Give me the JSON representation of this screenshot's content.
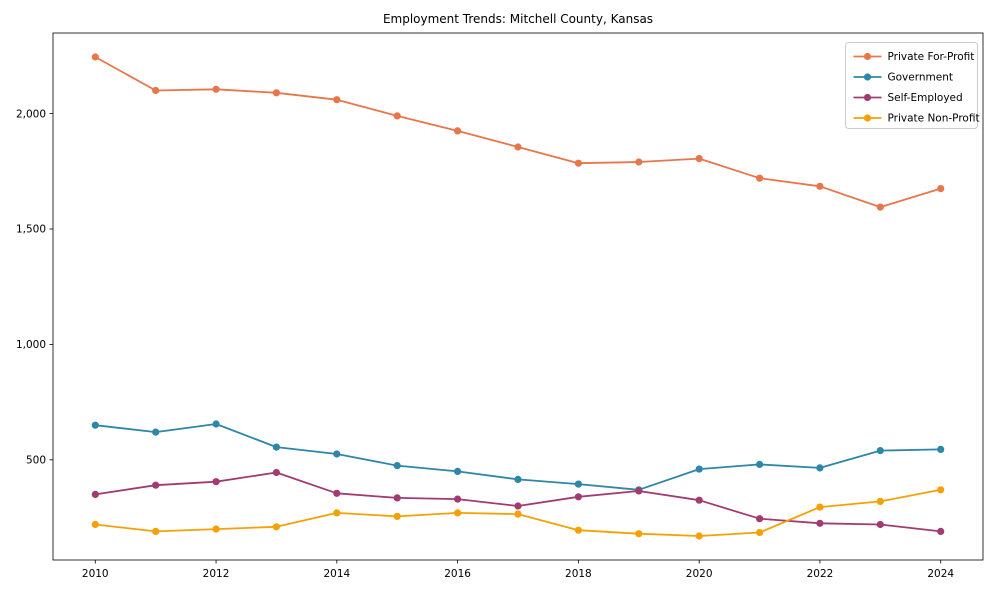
{
  "chart_data": {
    "type": "line",
    "title": "Employment Trends: Mitchell County, Kansas",
    "xlabel": "",
    "ylabel": "",
    "x": [
      2010,
      2011,
      2012,
      2013,
      2014,
      2015,
      2016,
      2017,
      2018,
      2019,
      2020,
      2021,
      2022,
      2023,
      2024
    ],
    "series": [
      {
        "name": "Private For-Profit",
        "color": "#E8764B",
        "values": [
          2245,
          2100,
          2105,
          2090,
          2060,
          1990,
          1925,
          1855,
          1785,
          1790,
          1805,
          1720,
          1685,
          1595,
          1675
        ]
      },
      {
        "name": "Government",
        "color": "#2E86A8",
        "values": [
          650,
          620,
          655,
          555,
          525,
          475,
          450,
          415,
          395,
          370,
          460,
          480,
          465,
          540,
          545
        ]
      },
      {
        "name": "Self-Employed",
        "color": "#A23B72",
        "values": [
          350,
          390,
          405,
          445,
          355,
          335,
          330,
          300,
          340,
          365,
          325,
          245,
          225,
          220,
          190
        ]
      },
      {
        "name": "Private Non-Profit",
        "color": "#F5A105",
        "values": [
          220,
          190,
          200,
          210,
          270,
          255,
          270,
          265,
          195,
          180,
          170,
          185,
          295,
          320,
          370
        ]
      }
    ],
    "x_tick_labels": [
      "2010",
      "2012",
      "2014",
      "2016",
      "2018",
      "2020",
      "2022",
      "2024"
    ],
    "y_ticks": [
      {
        "value": 500,
        "label": "500"
      },
      {
        "value": 1000,
        "label": "1,000"
      },
      {
        "value": 1500,
        "label": "1,500"
      },
      {
        "value": 2000,
        "label": "2,000"
      }
    ],
    "xlim": [
      2009.3,
      2024.7
    ],
    "ylim": [
      66,
      2349
    ],
    "legend_position": "upper right",
    "grid": false,
    "background_color": "#ffffff",
    "spine_color": "#000000",
    "legend_border_color": "#cccccc"
  }
}
